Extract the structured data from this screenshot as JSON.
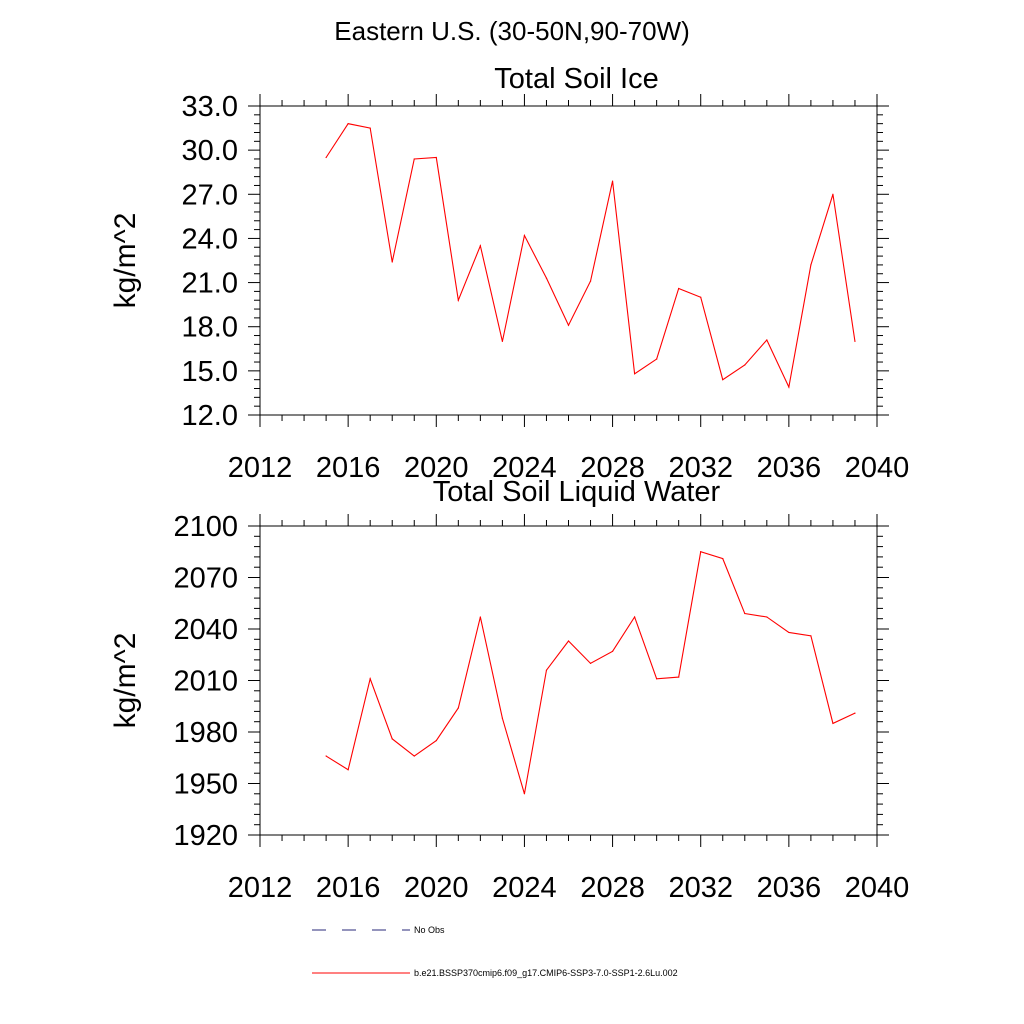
{
  "figure": {
    "supertitle": "Eastern U.S. (30-50N,90-70W)"
  },
  "chart_data": [
    {
      "type": "line",
      "title": "Total Soil Ice",
      "xlabel": "",
      "ylabel": "kg/m^2",
      "xlim": [
        2012,
        2040
      ],
      "ylim": [
        12.0,
        33.0
      ],
      "x_ticks": [
        "2012",
        "2016",
        "2020",
        "2024",
        "2028",
        "2032",
        "2036",
        "2040"
      ],
      "y_ticks": [
        "12.0",
        "15.0",
        "18.0",
        "21.0",
        "24.0",
        "27.0",
        "30.0",
        "33.0"
      ],
      "grid": false,
      "x": [
        2015,
        2016,
        2017,
        2018,
        2019,
        2020,
        2021,
        2022,
        2023,
        2024,
        2025,
        2026,
        2027,
        2028,
        2029,
        2030,
        2031,
        2032,
        2033,
        2034,
        2035,
        2036,
        2037,
        2038,
        2039
      ],
      "series": [
        {
          "name": "b.e21.BSSP370cmip6.f09_g17.CMIP6-SSP3-7.0-SSP1-2.6Lu.002",
          "color": "#ff0000",
          "values": [
            29.5,
            31.8,
            31.5,
            22.4,
            29.4,
            29.5,
            19.8,
            23.5,
            17.0,
            24.2,
            21.3,
            18.1,
            21.1,
            27.9,
            14.8,
            15.8,
            20.6,
            20.0,
            14.4,
            15.4,
            17.1,
            13.9,
            22.2,
            27.0,
            17.0
          ]
        }
      ]
    },
    {
      "type": "line",
      "title": "Total Soil Liquid Water",
      "xlabel": "",
      "ylabel": "kg/m^2",
      "xlim": [
        2012,
        2040
      ],
      "ylim": [
        1920,
        2100
      ],
      "x_ticks": [
        "2012",
        "2016",
        "2020",
        "2024",
        "2028",
        "2032",
        "2036",
        "2040"
      ],
      "y_ticks": [
        "1920",
        "1950",
        "1980",
        "2010",
        "2040",
        "2070",
        "2100"
      ],
      "grid": false,
      "x": [
        2015,
        2016,
        2017,
        2018,
        2019,
        2020,
        2021,
        2022,
        2023,
        2024,
        2025,
        2026,
        2027,
        2028,
        2029,
        2030,
        2031,
        2032,
        2033,
        2034,
        2035,
        2036,
        2037,
        2038,
        2039
      ],
      "series": [
        {
          "name": "b.e21.BSSP370cmip6.f09_g17.CMIP6-SSP3-7.0-SSP1-2.6Lu.002",
          "color": "#ff0000",
          "values": [
            1966,
            1958,
            2011,
            1976,
            1966,
            1975,
            1994,
            2047,
            1988,
            1944,
            2016,
            2033,
            2020,
            2027,
            2047,
            2011,
            2012,
            2085,
            2081,
            2049,
            2047,
            2038,
            2036,
            1985,
            1991
          ]
        }
      ]
    }
  ],
  "legend": {
    "placement": "bottom-left",
    "items": [
      {
        "label": "No Obs",
        "color": "#2a2a7a",
        "style": "dashed"
      },
      {
        "label": "b.e21.BSSP370cmip6.f09_g17.CMIP6-SSP3-7.0-SSP1-2.6Lu.002",
        "color": "#ff0000",
        "style": "solid"
      }
    ]
  }
}
